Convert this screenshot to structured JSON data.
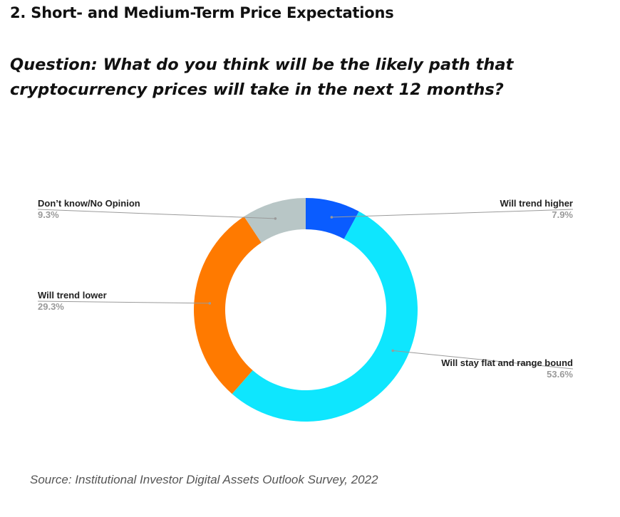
{
  "section_title": "2. Short- and Medium-Term Price Expectations",
  "question": "Question: What do you think will be the likely path that cryptocurrency prices will take in the next 12 months?",
  "source": "Source: Institutional Investor Digital Assets Outlook Survey, 2022",
  "chart_data": {
    "type": "pie",
    "variant": "donut",
    "title": "",
    "start_angle_deg": 0,
    "direction": "clockwise",
    "slices": [
      {
        "label": "Will trend higher",
        "value": 7.9,
        "value_label": "7.9%",
        "color": "#0a5cff"
      },
      {
        "label": "Will stay flat and range bound",
        "value": 53.6,
        "value_label": "53.6%",
        "color": "#0ee6fe"
      },
      {
        "label": "Will trend lower",
        "value": 29.3,
        "value_label": "29.3%",
        "color": "#ff7a00"
      },
      {
        "label": "Don’t know/No Opinion",
        "value": 9.3,
        "value_label": "9.3%",
        "color": "#b8c6c6"
      }
    ],
    "label_color": "#222222",
    "value_color": "#9a9a9a",
    "leader_color": "#9a9a9a"
  }
}
